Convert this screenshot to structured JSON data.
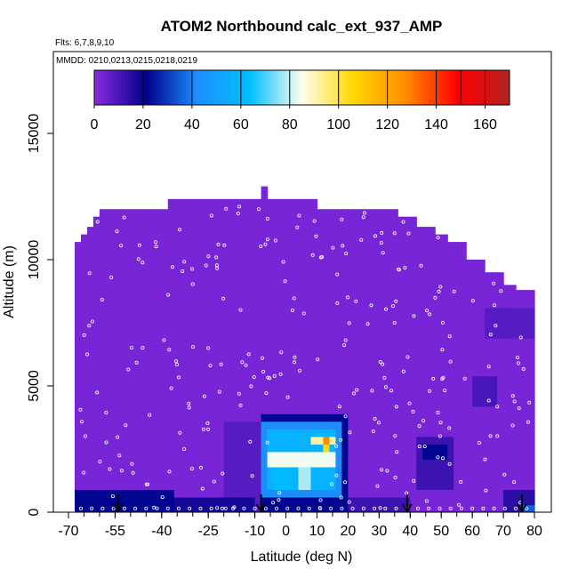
{
  "chart_data": {
    "type": "heatmap",
    "title": "ATOM2 Northbound calc_ext_937_AMP",
    "subtitle_flights": "Flts: 6,7,8,9,10",
    "subtitle_dates": "MMDD: 0210,0213,0215,0218,0219",
    "xlabel": "Latitude (deg N)",
    "ylabel": "Altitude (m)",
    "xlim": [
      -70,
      80
    ],
    "ylim": [
      0,
      17600
    ],
    "x_ticks": [
      "-70",
      "-55",
      "-40",
      "-25",
      "-10",
      "0",
      "10",
      "20",
      "30",
      "40",
      "50",
      "60",
      "70",
      "80"
    ],
    "x_tick_values": [
      -70,
      -55,
      -40,
      -25,
      -10,
      0,
      10,
      20,
      30,
      40,
      50,
      60,
      70,
      80
    ],
    "y_ticks": [
      "0",
      "5000",
      "10000",
      "15000"
    ],
    "y_tick_values": [
      0,
      5000,
      10000,
      15000
    ],
    "colorbar": {
      "ticks": [
        "0",
        "20",
        "40",
        "60",
        "80",
        "100",
        "120",
        "140",
        "160"
      ],
      "tick_values": [
        0,
        20,
        40,
        60,
        80,
        100,
        120,
        140,
        160
      ],
      "range": [
        0,
        170
      ],
      "colors": [
        "#8a2be2",
        "#00008b",
        "#1e90ff",
        "#00bfff",
        "#fffff0",
        "#ffd700",
        "#ff8c00",
        "#ff0000",
        "#b22222"
      ]
    },
    "background_value": 3,
    "top_profile": [
      {
        "lat": -68,
        "alt": 10700
      },
      {
        "lat": -66,
        "alt": 11000
      },
      {
        "lat": -64,
        "alt": 11300
      },
      {
        "lat": -62,
        "alt": 11700
      },
      {
        "lat": -60,
        "alt": 12000
      },
      {
        "lat": -40,
        "alt": 12000
      },
      {
        "lat": -38,
        "alt": 12400
      },
      {
        "lat": 0,
        "alt": 12400
      },
      {
        "lat": 10,
        "alt": 12000
      },
      {
        "lat": 30,
        "alt": 12000
      },
      {
        "lat": 35,
        "alt": 11700
      },
      {
        "lat": 42,
        "alt": 11300
      },
      {
        "lat": 48,
        "alt": 11000
      },
      {
        "lat": 52,
        "alt": 10700
      },
      {
        "lat": 58,
        "alt": 10000
      },
      {
        "lat": 63,
        "alt": 9500
      },
      {
        "lat": 70,
        "alt": 9000
      },
      {
        "lat": 74,
        "alt": 8800
      },
      {
        "lat": 79,
        "alt": 8500
      },
      {
        "lat": 80,
        "alt": 8500
      }
    ],
    "peak_column": {
      "lat": -8,
      "alt": 12900
    },
    "features": [
      {
        "lat0": -68,
        "lat1": -35,
        "alt0": 0,
        "alt1": 900,
        "value": 22
      },
      {
        "lat0": -35,
        "lat1": -10,
        "alt0": 0,
        "alt1": 700,
        "value": 18
      },
      {
        "lat0": -20,
        "lat1": -8,
        "alt0": 0,
        "alt1": 3500,
        "value": 8
      },
      {
        "lat0": -8,
        "lat1": 20,
        "alt0": 0,
        "alt1": 4000,
        "value": 22
      },
      {
        "lat0": -7,
        "lat1": 18,
        "alt0": 500,
        "alt1": 3500,
        "value": 42
      },
      {
        "lat0": -6,
        "lat1": 17,
        "alt0": 1000,
        "alt1": 3200,
        "value": 58
      },
      {
        "lat0": -5,
        "lat1": 16,
        "alt0": 1900,
        "alt1": 2500,
        "value": 84
      },
      {
        "lat0": -4,
        "lat1": 2,
        "alt0": 1000,
        "alt1": 2000,
        "value": 62
      },
      {
        "lat0": 5,
        "lat1": 9,
        "alt0": 800,
        "alt1": 1700,
        "value": 78
      },
      {
        "lat0": 9,
        "lat1": 17,
        "alt0": 2600,
        "alt1": 3100,
        "value": 92
      },
      {
        "lat0": 12,
        "lat1": 15,
        "alt0": 2300,
        "alt1": 3000,
        "value": 105
      },
      {
        "lat0": 12,
        "lat1": 14,
        "alt0": 2600,
        "alt1": 3000,
        "value": 128
      },
      {
        "lat0": 20,
        "lat1": 40,
        "alt0": 0,
        "alt1": 500,
        "value": 12
      },
      {
        "lat0": 42,
        "lat1": 55,
        "alt0": 1000,
        "alt1": 3000,
        "value": 12
      },
      {
        "lat0": 44,
        "lat1": 52,
        "alt0": 2000,
        "alt1": 2800,
        "value": 22
      },
      {
        "lat0": 60,
        "lat1": 68,
        "alt0": 4200,
        "alt1": 5300,
        "value": 10
      },
      {
        "lat0": 65,
        "lat1": 80,
        "alt0": 7000,
        "alt1": 8000,
        "value": 8
      },
      {
        "lat0": 70,
        "lat1": 80,
        "alt0": 0,
        "alt1": 900,
        "value": 15
      },
      {
        "lat0": 76,
        "lat1": 80,
        "alt0": 0,
        "alt1": 400,
        "value": 35
      }
    ],
    "arrows_lat": [
      -54,
      -8,
      39,
      76
    ]
  }
}
